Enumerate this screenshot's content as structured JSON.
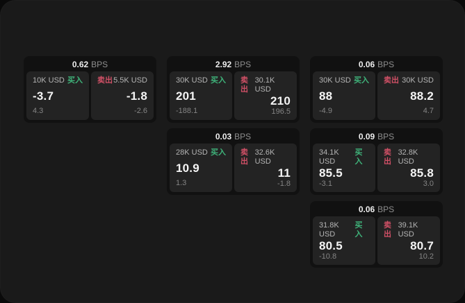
{
  "app": {
    "name": "fx-quote-tiles",
    "background_color": "#0a0a0a",
    "panel_color": "#1a1a1a"
  },
  "colors": {
    "buy_green": "#3fb37a",
    "sell_red": "#d05066",
    "card_bg": "#111111",
    "subpanel_bg": "#232323"
  },
  "labels": {
    "buy": "买入",
    "sell": "卖出",
    "bps_unit": "BPS"
  },
  "cards": [
    {
      "bps": "0.62",
      "buy": {
        "amount": "10K USD",
        "price": "-3.7",
        "delta": "4.3"
      },
      "sell": {
        "amount": "5.5K USD",
        "price": "-1.8",
        "delta": "-2.6"
      }
    },
    {
      "bps": "2.92",
      "buy": {
        "amount": "30K USD",
        "price": "201",
        "delta": "-188.1"
      },
      "sell": {
        "amount": "30.1K USD",
        "price": "210",
        "delta": "196.5"
      }
    },
    {
      "bps": "0.06",
      "buy": {
        "amount": "30K USD",
        "price": "88",
        "delta": "-4.9"
      },
      "sell": {
        "amount": "30K USD",
        "price": "88.2",
        "delta": "4.7"
      }
    },
    {
      "bps": "0.03",
      "buy": {
        "amount": "28K USD",
        "price": "10.9",
        "delta": "1.3"
      },
      "sell": {
        "amount": "32.6K USD",
        "price": "11",
        "delta": "-1.8"
      }
    },
    {
      "bps": "0.09",
      "buy": {
        "amount": "34.1K USD",
        "price": "85.5",
        "delta": "-3.1"
      },
      "sell": {
        "amount": "32.8K USD",
        "price": "85.8",
        "delta": "3.0"
      }
    },
    {
      "bps": "0.06",
      "buy": {
        "amount": "31.8K USD",
        "price": "80.5",
        "delta": "-10.8"
      },
      "sell": {
        "amount": "39.1K USD",
        "price": "80.7",
        "delta": "10.2"
      }
    }
  ]
}
